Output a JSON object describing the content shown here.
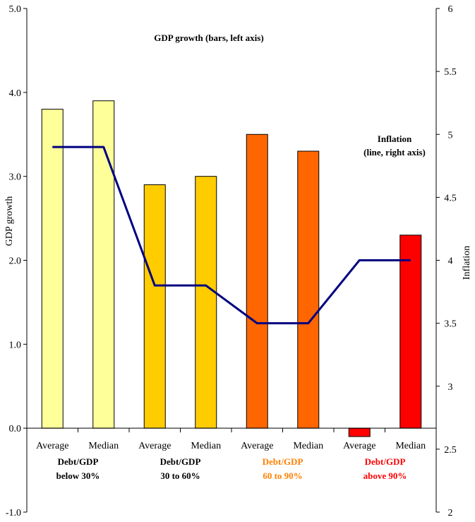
{
  "chart_data": {
    "type": "bar",
    "title": "",
    "categories": [
      "Average",
      "Median",
      "Average",
      "Median",
      "Average",
      "Median",
      "Average",
      "Median"
    ],
    "groups": [
      {
        "label_line1": "Debt/GDP",
        "label_line2": "below 30%",
        "color": "#000000"
      },
      {
        "label_line1": "Debt/GDP",
        "label_line2": "30 to 60%",
        "color": "#000000"
      },
      {
        "label_line1": "Debt/GDP",
        "label_line2": "60 to 90%",
        "color": "#ff8000"
      },
      {
        "label_line1": "Debt/GDP",
        "label_line2": "above 90%",
        "color": "#ff0000"
      }
    ],
    "bars": {
      "name": "GDP growth",
      "values": [
        3.8,
        3.9,
        2.9,
        3.0,
        3.5,
        3.3,
        -0.1,
        2.3
      ],
      "colors": [
        "#ffff99",
        "#ffff99",
        "#ffcc00",
        "#ffcc00",
        "#ff6600",
        "#ff6600",
        "#ff0000",
        "#ff0000"
      ],
      "axis": "left"
    },
    "line": {
      "name": "Inflation",
      "values": [
        4.9,
        4.9,
        3.8,
        3.8,
        3.5,
        3.5,
        4.0,
        4.0
      ],
      "color": "#000080",
      "axis": "right"
    },
    "ylabel": "GDP growth",
    "y2label": "Inflation",
    "ylim": [
      -1.0,
      5.0
    ],
    "y2lim": [
      2,
      6
    ],
    "yticks": [
      "5.0",
      "4.0",
      "3.0",
      "2.0",
      "1.0",
      "0.0",
      "-1.0"
    ],
    "y2ticks": [
      "6",
      "5.5",
      "5",
      "4.5",
      "4",
      "3.5",
      "3",
      "2.5",
      "2"
    ],
    "annotations": {
      "bars_note": "GDP growth (bars, left axis)",
      "line_note_1": "Inflation",
      "line_note_2": "(line, right axis)"
    },
    "grid": false,
    "legend": "none"
  }
}
